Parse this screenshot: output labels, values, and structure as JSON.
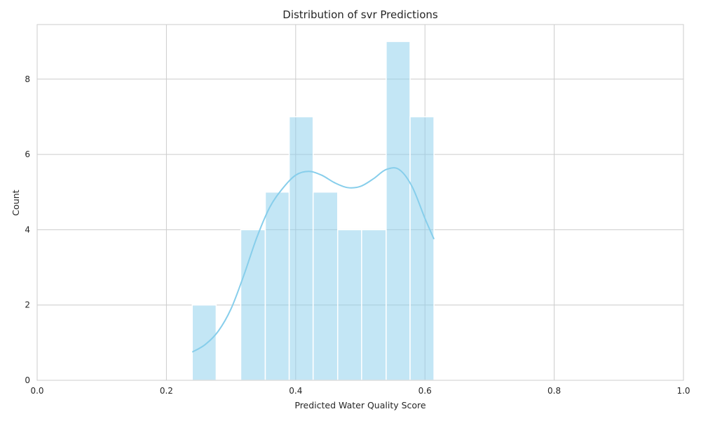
{
  "chart_data": {
    "type": "histogram",
    "title": "Distribution of svr Predictions",
    "xlabel": "Predicted Water Quality Score",
    "ylabel": "Count",
    "xlim": [
      0.0,
      1.0
    ],
    "ylim": [
      0,
      9.45
    ],
    "xticks": [
      0.0,
      0.2,
      0.4,
      0.6,
      0.8,
      1.0
    ],
    "xtick_labels": [
      "0.0",
      "0.2",
      "0.4",
      "0.6",
      "0.8",
      "1.0"
    ],
    "yticks": [
      0,
      2,
      4,
      6,
      8
    ],
    "ytick_labels": [
      "0",
      "2",
      "4",
      "6",
      "8"
    ],
    "grid": true,
    "bar_color": "#87ceeb",
    "bins": [
      {
        "start": 0.24,
        "end": 0.277,
        "count": 2
      },
      {
        "start": 0.277,
        "end": 0.315,
        "count": 0
      },
      {
        "start": 0.315,
        "end": 0.353,
        "count": 4
      },
      {
        "start": 0.353,
        "end": 0.39,
        "count": 5
      },
      {
        "start": 0.39,
        "end": 0.427,
        "count": 7
      },
      {
        "start": 0.427,
        "end": 0.465,
        "count": 5
      },
      {
        "start": 0.465,
        "end": 0.502,
        "count": 4
      },
      {
        "start": 0.502,
        "end": 0.54,
        "count": 4
      },
      {
        "start": 0.54,
        "end": 0.577,
        "count": 9
      },
      {
        "start": 0.577,
        "end": 0.614,
        "count": 7
      }
    ],
    "kde": {
      "x": [
        0.24,
        0.26,
        0.28,
        0.3,
        0.32,
        0.34,
        0.36,
        0.38,
        0.4,
        0.42,
        0.44,
        0.46,
        0.48,
        0.5,
        0.52,
        0.54,
        0.56,
        0.58,
        0.6,
        0.614
      ],
      "y": [
        0.75,
        0.95,
        1.3,
        1.9,
        2.8,
        3.8,
        4.6,
        5.1,
        5.45,
        5.55,
        5.45,
        5.25,
        5.12,
        5.15,
        5.35,
        5.6,
        5.6,
        5.15,
        4.3,
        3.75
      ]
    }
  }
}
